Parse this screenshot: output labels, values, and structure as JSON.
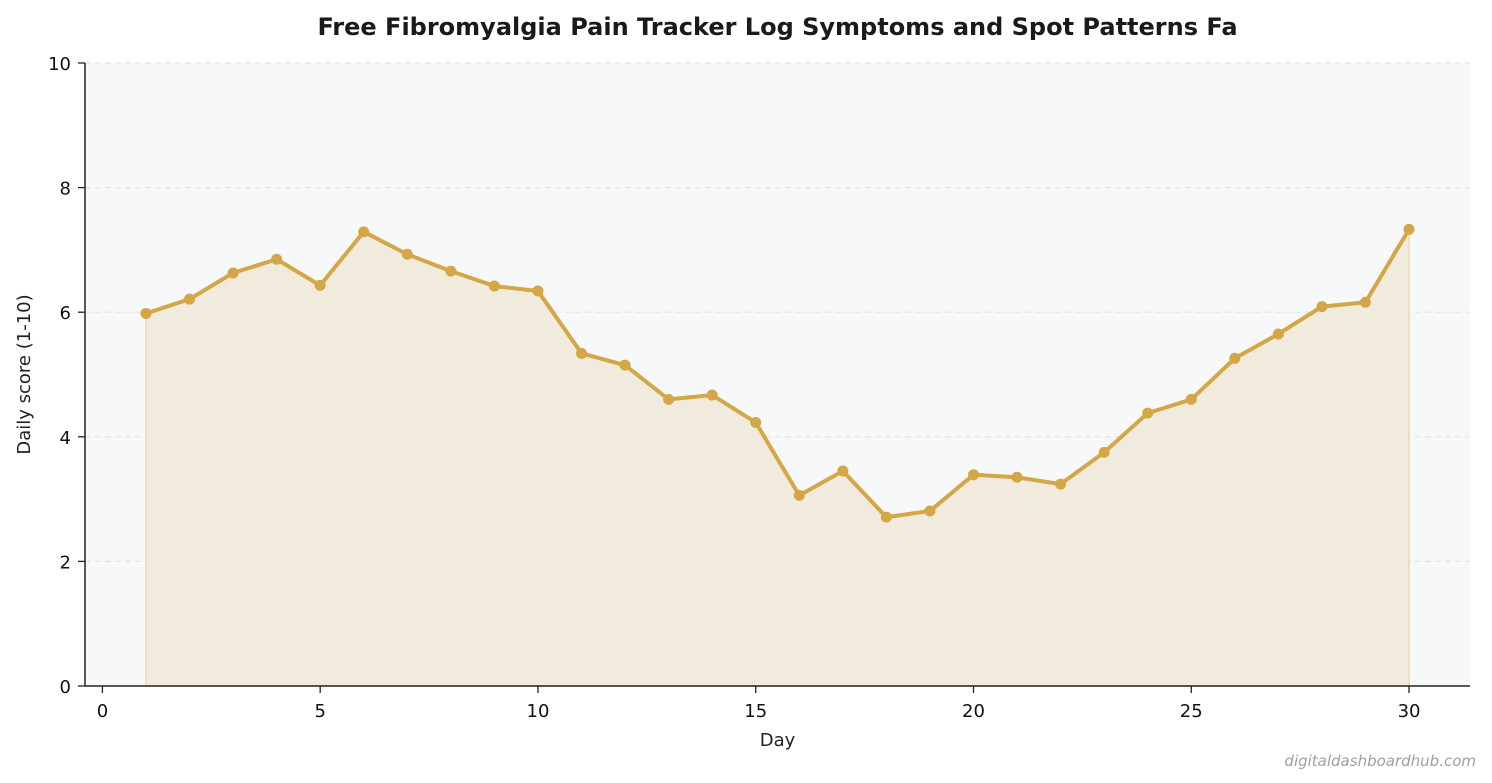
{
  "chart_data": {
    "type": "area",
    "title": "Free Fibromyalgia Pain Tracker  Log Symptoms and Spot Patterns Fa",
    "xlabel": "Day",
    "ylabel": "Daily score (1-10)",
    "xlim": [
      -0.4,
      31.4
    ],
    "ylim": [
      0,
      10
    ],
    "xticks": [
      0,
      5,
      10,
      15,
      20,
      25,
      30
    ],
    "yticks": [
      0,
      2,
      4,
      6,
      8,
      10
    ],
    "grid": "horizontal dashed",
    "legend": "none",
    "series": [
      {
        "x": [
          1,
          2,
          3,
          4,
          5,
          6,
          7,
          8,
          9,
          10,
          11,
          12,
          13,
          14,
          15,
          16,
          17,
          18,
          19,
          20,
          21,
          22,
          23,
          24,
          25,
          26,
          27,
          28,
          29,
          30
        ],
        "values": [
          5.98,
          6.21,
          6.63,
          6.85,
          6.43,
          7.29,
          6.93,
          6.66,
          6.42,
          6.34,
          5.34,
          5.15,
          4.6,
          4.67,
          4.23,
          3.06,
          3.45,
          2.71,
          2.81,
          3.39,
          3.35,
          3.24,
          3.75,
          4.38,
          4.6,
          5.26,
          5.65,
          6.09,
          6.16,
          7.33
        ]
      }
    ],
    "colors": {
      "line": "#d4a645",
      "fill": "#f1ebdd",
      "plot_background": "#f7f8fa",
      "grid": "#e2e4e7",
      "axis": "#222222"
    }
  },
  "watermark": "digitaldashboardhub.com"
}
